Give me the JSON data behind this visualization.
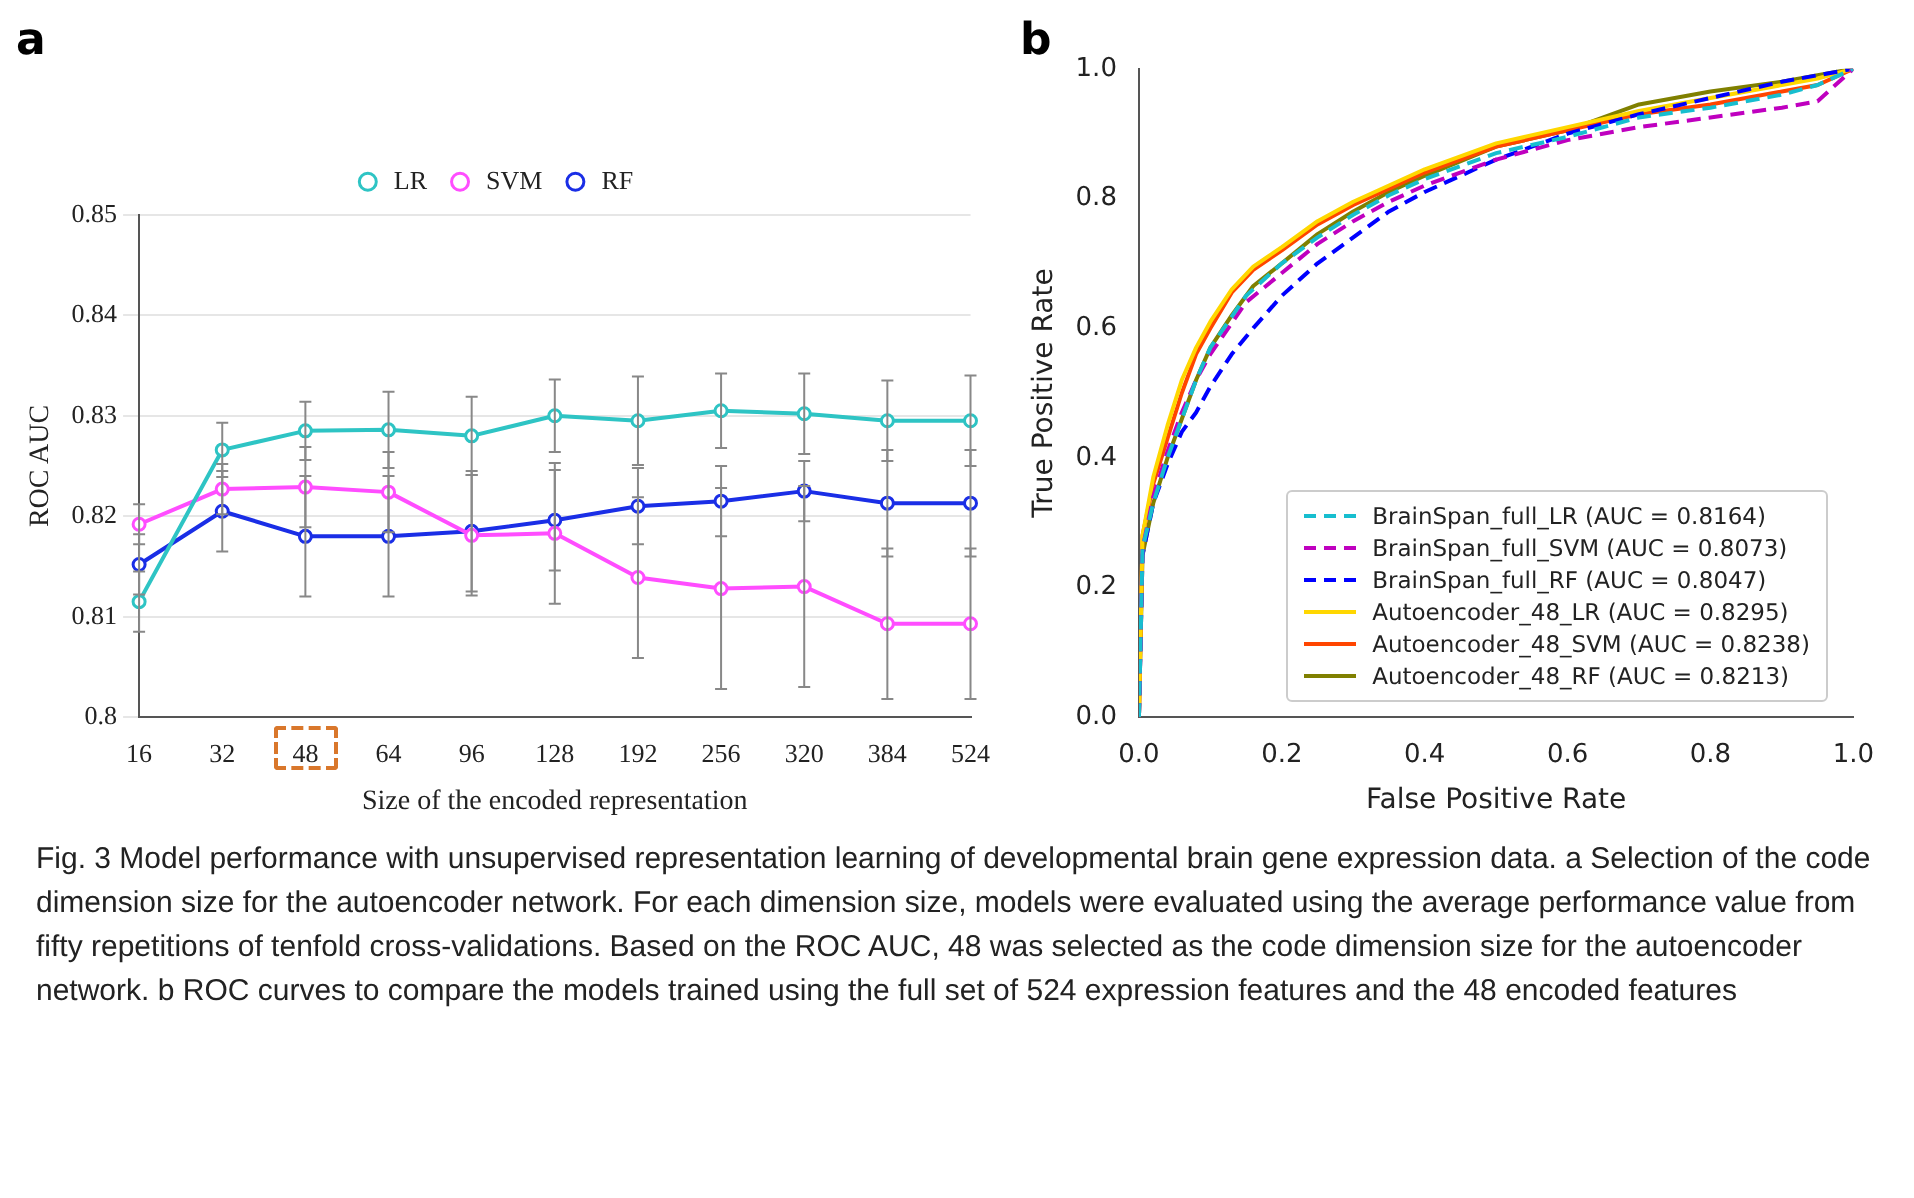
{
  "chart_data": [
    {
      "type": "line",
      "title": "a",
      "xlabel": "Size of the encoded representation",
      "ylabel": "ROC AUC",
      "categories": [
        "16",
        "32",
        "48",
        "64",
        "96",
        "128",
        "192",
        "256",
        "320",
        "384",
        "524"
      ],
      "ylim": [
        0.8,
        0.85
      ],
      "yticks": [
        0.8,
        0.81,
        0.82,
        0.83,
        0.84,
        0.85
      ],
      "grid": "y",
      "legend": "top",
      "marker": "circle",
      "series": [
        {
          "name": "LR",
          "color": "#2ec4c4",
          "values": [
            0.8115,
            0.8266,
            0.8285,
            0.8286,
            0.828,
            0.83,
            0.8295,
            0.8305,
            0.8302,
            0.8295,
            0.8295
          ],
          "errors": [
            0.003,
            0.0027,
            0.0029,
            0.0038,
            0.0039,
            0.0036,
            0.0044,
            0.0037,
            0.004,
            0.004,
            0.0045
          ]
        },
        {
          "name": "SVM",
          "color": "#ff4dff",
          "values": [
            0.8192,
            0.8227,
            0.8229,
            0.8224,
            0.8181,
            0.8183,
            0.8139,
            0.8128,
            0.813,
            0.8093,
            0.8093
          ],
          "errors": [
            0.002,
            0.0025,
            0.004,
            0.004,
            0.006,
            0.007,
            0.008,
            0.01,
            0.01,
            0.0075,
            0.0075
          ]
        },
        {
          "name": "RF",
          "color": "#1a2ee6",
          "values": [
            0.8152,
            0.8205,
            0.818,
            0.818,
            0.8185,
            0.8196,
            0.821,
            0.8215,
            0.8225,
            0.8213,
            0.8213
          ],
          "errors": [
            0.003,
            0.004,
            0.006,
            0.006,
            0.006,
            0.005,
            0.0038,
            0.0035,
            0.003,
            0.0053,
            0.0053
          ]
        }
      ]
    },
    {
      "type": "line",
      "title": "b",
      "xlabel": "False Positive Rate",
      "ylabel": "True Positive Rate",
      "xlim": [
        0,
        1
      ],
      "ylim": [
        0,
        1
      ],
      "xticks": [
        {
          "value": 0,
          "label": "0.0"
        },
        0.2,
        0.4,
        0.6,
        0.8,
        {
          "value": 1,
          "label": "1.0"
        }
      ],
      "yticks": [
        {
          "value": 0,
          "label": "0.0"
        },
        0.2,
        0.4,
        0.6,
        0.8,
        {
          "value": 1,
          "label": "1.0"
        }
      ],
      "grid": false,
      "legend": "bottom right",
      "marker": "none",
      "series": [
        {
          "name": "BrainSpan_full_LR (AUC = 0.8164)",
          "color": "#17becf",
          "line_style": "dashed",
          "x": [
            0,
            0.005,
            0.02,
            0.04,
            0.06,
            0.08,
            0.1,
            0.15,
            0.2,
            0.25,
            0.3,
            0.35,
            0.4,
            0.5,
            0.6,
            0.7,
            0.8,
            0.9,
            0.95,
            1
          ],
          "values": [
            0,
            0.26,
            0.33,
            0.4,
            0.46,
            0.52,
            0.57,
            0.65,
            0.7,
            0.74,
            0.775,
            0.805,
            0.83,
            0.87,
            0.895,
            0.925,
            0.94,
            0.96,
            0.975,
            1
          ]
        },
        {
          "name": "BrainSpan_full_SVM (AUC = 0.8073)",
          "color": "#bf00bf",
          "line_style": "dashed",
          "x": [
            0,
            0.005,
            0.02,
            0.04,
            0.06,
            0.08,
            0.1,
            0.15,
            0.2,
            0.25,
            0.3,
            0.35,
            0.4,
            0.5,
            0.6,
            0.7,
            0.8,
            0.9,
            0.95,
            1
          ],
          "values": [
            0,
            0.26,
            0.34,
            0.41,
            0.47,
            0.52,
            0.56,
            0.64,
            0.685,
            0.73,
            0.765,
            0.795,
            0.82,
            0.86,
            0.89,
            0.91,
            0.925,
            0.94,
            0.95,
            1
          ]
        },
        {
          "name": "BrainSpan_full_RF (AUC = 0.8047)",
          "color": "#0000ff",
          "line_style": "dashed",
          "x": [
            0,
            0.005,
            0.02,
            0.04,
            0.06,
            0.08,
            0.1,
            0.13,
            0.16,
            0.2,
            0.25,
            0.3,
            0.35,
            0.4,
            0.45,
            0.5,
            0.55,
            0.6,
            0.7,
            0.8,
            0.9,
            1
          ],
          "values": [
            0,
            0.25,
            0.33,
            0.39,
            0.44,
            0.47,
            0.51,
            0.56,
            0.6,
            0.65,
            0.7,
            0.74,
            0.78,
            0.81,
            0.835,
            0.86,
            0.88,
            0.9,
            0.93,
            0.955,
            0.98,
            1
          ]
        },
        {
          "name": "Autoencoder_48_LR (AUC = 0.8295)",
          "color": "#ffd700",
          "line_style": "solid",
          "x": [
            0,
            0.005,
            0.02,
            0.04,
            0.06,
            0.08,
            0.1,
            0.13,
            0.16,
            0.2,
            0.25,
            0.3,
            0.35,
            0.4,
            0.5,
            0.6,
            0.7,
            0.8,
            0.9,
            0.95,
            1
          ],
          "values": [
            0,
            0.28,
            0.37,
            0.45,
            0.52,
            0.57,
            0.61,
            0.66,
            0.695,
            0.725,
            0.765,
            0.795,
            0.82,
            0.845,
            0.885,
            0.91,
            0.935,
            0.955,
            0.975,
            0.985,
            1
          ]
        },
        {
          "name": "Autoencoder_48_SVM (AUC = 0.8238)",
          "color": "#ff4500",
          "line_style": "solid",
          "x": [
            0,
            0.005,
            0.02,
            0.04,
            0.06,
            0.08,
            0.1,
            0.13,
            0.16,
            0.2,
            0.25,
            0.3,
            0.35,
            0.4,
            0.45,
            0.5,
            0.6,
            0.7,
            0.8,
            0.9,
            0.95,
            1
          ],
          "values": [
            0,
            0.28,
            0.36,
            0.43,
            0.5,
            0.56,
            0.6,
            0.655,
            0.69,
            0.72,
            0.76,
            0.79,
            0.815,
            0.84,
            0.86,
            0.88,
            0.905,
            0.93,
            0.945,
            0.965,
            0.975,
            1
          ]
        },
        {
          "name": "Autoencoder_48_RF (AUC = 0.8213)",
          "color": "#808000",
          "line_style": "solid",
          "x": [
            0,
            0.005,
            0.02,
            0.04,
            0.06,
            0.08,
            0.1,
            0.13,
            0.16,
            0.2,
            0.25,
            0.3,
            0.35,
            0.4,
            0.5,
            0.6,
            0.7,
            0.8,
            0.9,
            0.95,
            1
          ],
          "values": [
            0,
            0.25,
            0.33,
            0.4,
            0.46,
            0.52,
            0.57,
            0.62,
            0.665,
            0.7,
            0.745,
            0.78,
            0.81,
            0.835,
            0.88,
            0.905,
            0.945,
            0.965,
            0.98,
            0.99,
            1
          ]
        }
      ],
      "annotations": [
        "Fig. 3  Model performance with unsupervised representation learning of developmental brain gene expression data. a Selection of the code dimension size for the autoencoder network. For each dimension size, models were evaluated using the average performance value from fifty repetitions of tenfold cross-validations. Based on the ROC AUC, 48 was selected as the code dimension size for the autoencoder network. b ROC curves to compare the models trained using the full set of 524 expression features and the 48 encoded features"
      ]
    }
  ]
}
